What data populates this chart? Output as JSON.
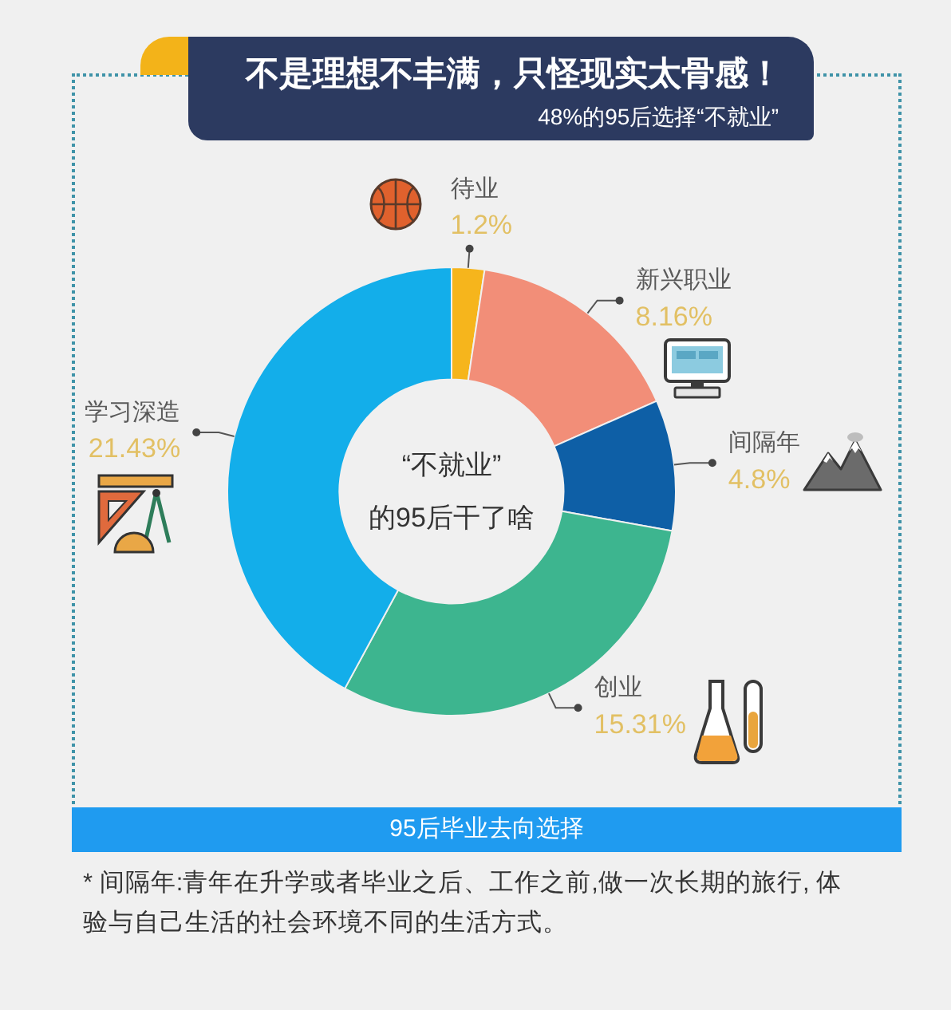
{
  "chart_data": {
    "type": "donut",
    "title": "不是理想不丰满，只怪现实太骨感！",
    "subtitle": "48%的95后选择“不就业”",
    "categories": [
      "待业",
      "新兴职业",
      "间隔年",
      "创业",
      "学习深造"
    ],
    "values": [
      1.2,
      8.16,
      4.8,
      15.31,
      21.43
    ],
    "colors": [
      "#f6b51c",
      "#f28e78",
      "#0e5fa6",
      "#3db58f",
      "#13aeea"
    ],
    "value_labels": [
      "1.2%",
      "8.16%",
      "4.8%",
      "15.31%",
      "21.43%"
    ],
    "annotations": [
      "“不就业”\n的95后干了啥",
      "95后毕业去向选择",
      "* 间隔年:青年在升学或者毕业之后、工作之前,做一次长期的旅行, 体验与自己生活的社会环境不同的生活方式。"
    ]
  }
}
